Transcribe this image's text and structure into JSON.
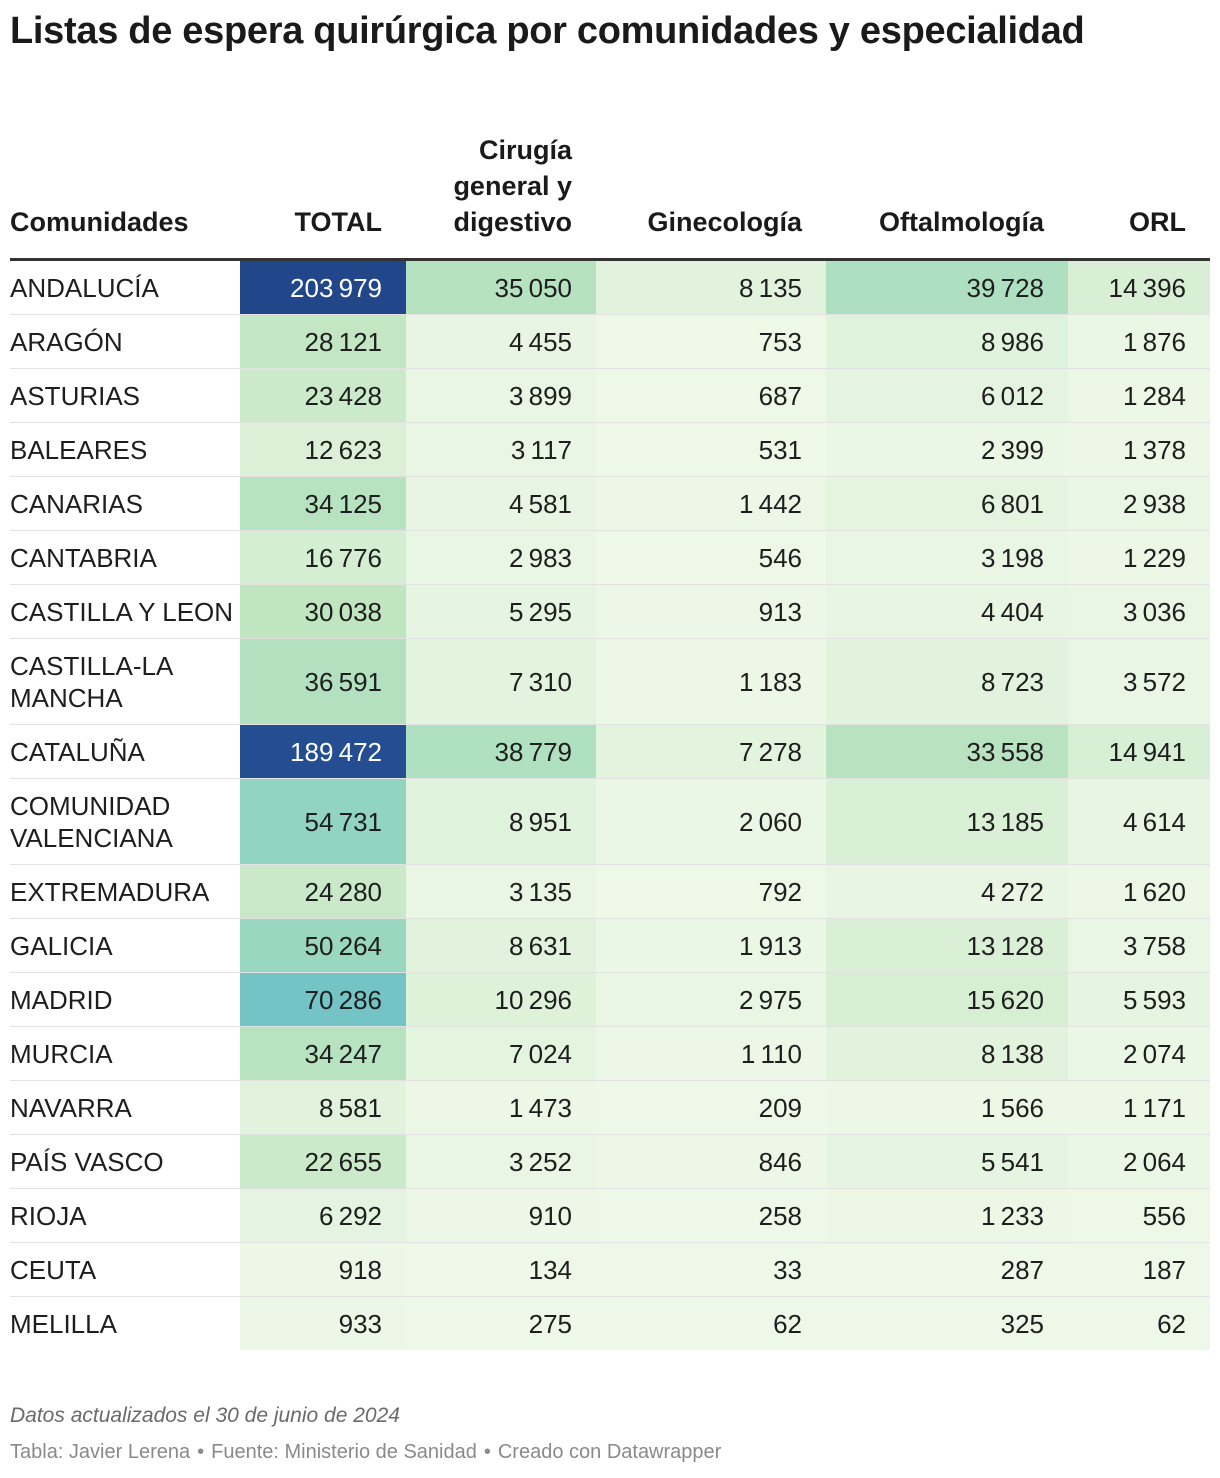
{
  "title": "Listas de espera quirúrgica por comunidades y especialidad",
  "chart_data": {
    "type": "table",
    "columns": [
      "Comunidades",
      "TOTAL",
      "Cirugía general y digestivo",
      "Ginecología",
      "Oftalmología",
      "ORL"
    ],
    "rows": [
      {
        "label": "ANDALUCÍA",
        "values": [
          203979,
          35050,
          8135,
          39728,
          14396
        ]
      },
      {
        "label": "ARAGÓN",
        "values": [
          28121,
          4455,
          753,
          8986,
          1876
        ]
      },
      {
        "label": "ASTURIAS",
        "values": [
          23428,
          3899,
          687,
          6012,
          1284
        ]
      },
      {
        "label": "BALEARES",
        "values": [
          12623,
          3117,
          531,
          2399,
          1378
        ]
      },
      {
        "label": "CANARIAS",
        "values": [
          34125,
          4581,
          1442,
          6801,
          2938
        ]
      },
      {
        "label": "CANTABRIA",
        "values": [
          16776,
          2983,
          546,
          3198,
          1229
        ]
      },
      {
        "label": "CASTILLA Y LEON",
        "values": [
          30038,
          5295,
          913,
          4404,
          3036
        ]
      },
      {
        "label": "CASTILLA-LA MANCHA",
        "values": [
          36591,
          7310,
          1183,
          8723,
          3572
        ]
      },
      {
        "label": "CATALUÑA",
        "values": [
          189472,
          38779,
          7278,
          33558,
          14941
        ]
      },
      {
        "label": "COMUNIDAD VALENCIANA",
        "values": [
          54731,
          8951,
          2060,
          13185,
          4614
        ]
      },
      {
        "label": "EXTREMADURA",
        "values": [
          24280,
          3135,
          792,
          4272,
          1620
        ]
      },
      {
        "label": "GALICIA",
        "values": [
          50264,
          8631,
          1913,
          13128,
          3758
        ]
      },
      {
        "label": "MADRID",
        "values": [
          70286,
          10296,
          2975,
          15620,
          5593
        ]
      },
      {
        "label": "MURCIA",
        "values": [
          34247,
          7024,
          1110,
          8138,
          2074
        ]
      },
      {
        "label": "NAVARRA",
        "values": [
          8581,
          1473,
          209,
          1566,
          1171
        ]
      },
      {
        "label": "PAÍS VASCO",
        "values": [
          22655,
          3252,
          846,
          5541,
          2064
        ]
      },
      {
        "label": "RIOJA",
        "values": [
          6292,
          910,
          258,
          1233,
          556
        ]
      },
      {
        "label": "CEUTA",
        "values": [
          918,
          134,
          33,
          287,
          187
        ]
      },
      {
        "label": "MELILLA",
        "values": [
          933,
          275,
          62,
          325,
          62
        ]
      }
    ],
    "color_scale": {
      "stops": [
        {
          "value": 0,
          "color": "#eef8e8"
        },
        {
          "value": 30000,
          "color": "#c0e6c0"
        },
        {
          "value": 55000,
          "color": "#90d4c0"
        },
        {
          "value": 70000,
          "color": "#74c4c6"
        },
        {
          "value": 110000,
          "color": "#4a98c4"
        },
        {
          "value": 160000,
          "color": "#2d5fa4"
        },
        {
          "value": 200000,
          "color": "#22468a"
        }
      ],
      "dark_text_color": "#1e1e1e",
      "light_text_color": "#ffffff"
    }
  },
  "note": "Datos actualizados el 30 de junio de 2024",
  "footer": {
    "author": "Tabla: Javier Lerena",
    "source": "Fuente: Ministerio de Sanidad",
    "tool": "Creado con Datawrapper",
    "separator": "•"
  }
}
